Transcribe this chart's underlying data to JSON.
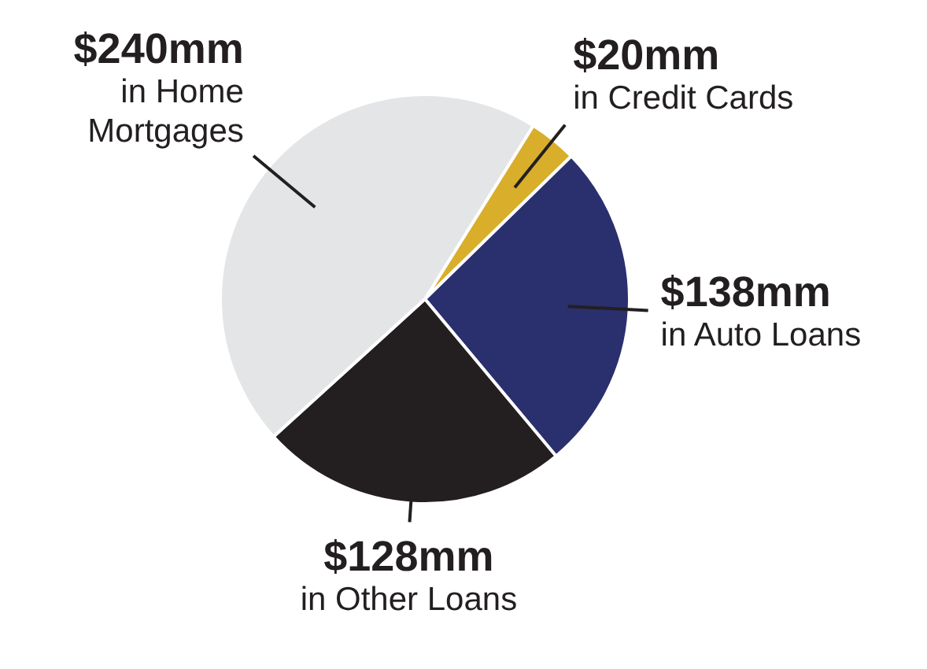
{
  "chart_data": {
    "type": "pie",
    "categories": [
      "in Credit Cards",
      "in Auto Loans",
      "in Other Loans",
      "in Home Mortgages"
    ],
    "values": [
      20,
      138,
      128,
      240
    ],
    "colors": [
      "#d9ae2b",
      "#2a2f6e",
      "#231f20",
      "#e4e5e6"
    ],
    "value_labels": [
      "$20mm",
      "$138mm",
      "$128mm",
      "$240mm"
    ]
  }
}
